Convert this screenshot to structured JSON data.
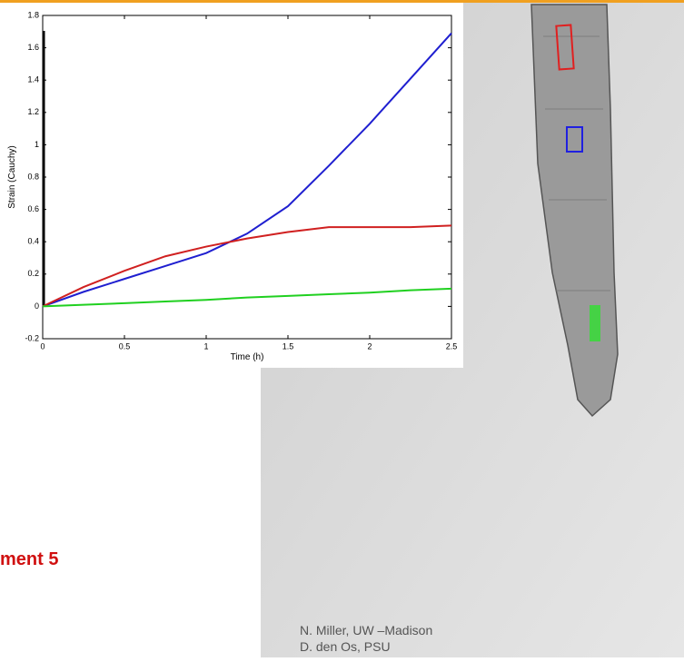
{
  "chart_data": {
    "type": "line",
    "x_label": "Time (h)",
    "y_label": "Strain (Cauchy)",
    "x": [
      0,
      0.25,
      0.5,
      0.75,
      1,
      1.25,
      1.5,
      1.75,
      2,
      2.25,
      2.5
    ],
    "series": [
      {
        "color": "#1f1fd0",
        "values": [
          0,
          0.09,
          0.17,
          0.25,
          0.33,
          0.45,
          0.62,
          0.87,
          1.13,
          1.41,
          1.69
        ]
      },
      {
        "color": "#d02020",
        "values": [
          0,
          0.12,
          0.22,
          0.31,
          0.37,
          0.42,
          0.46,
          0.49,
          0.49,
          0.49,
          0.5
        ]
      },
      {
        "color": "#20d020",
        "values": [
          0,
          0.01,
          0.02,
          0.03,
          0.04,
          0.055,
          0.065,
          0.075,
          0.085,
          0.1,
          0.11
        ]
      }
    ],
    "xlim": [
      0,
      2.5
    ],
    "xticks": [
      0,
      0.5,
      1,
      1.5,
      2,
      2.5
    ],
    "ylim": [
      -0.2,
      1.8
    ],
    "yticks": [
      -0.2,
      0,
      0.2,
      0.4,
      0.6,
      0.8,
      1,
      1.2,
      1.4,
      1.6,
      1.8
    ]
  },
  "slide": {
    "heading": "ment 5",
    "credits": [
      "N. Miller,  UW –Madison",
      "D. den Os, PSU"
    ]
  }
}
